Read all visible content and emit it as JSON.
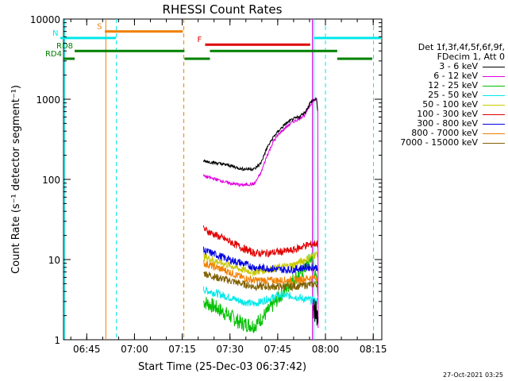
{
  "chart_data": {
    "type": "line",
    "title": "RHESSI Count Rates",
    "xlabel": "Start Time (25-Dec-03 06:37:42)",
    "ylabel": "Count Rate (s⁻¹ detector segment⁻¹)",
    "yscale": "log",
    "ylim": [
      1,
      10000
    ],
    "xlim_minutes_after_0637": [
      0,
      100
    ],
    "x_ticks": [
      {
        "label": "06:45",
        "min": 7.3
      },
      {
        "label": "07:00",
        "min": 22.3
      },
      {
        "label": "07:15",
        "min": 37.3
      },
      {
        "label": "07:30",
        "min": 52.3
      },
      {
        "label": "07:45",
        "min": 67.3
      },
      {
        "label": "08:00",
        "min": 82.3
      },
      {
        "label": "08:15",
        "min": 97.3
      }
    ],
    "y_ticks": [
      {
        "label": "1",
        "v": 1
      },
      {
        "label": "10",
        "v": 10
      },
      {
        "label": "100",
        "v": 100
      },
      {
        "label": "1000",
        "v": 1000
      },
      {
        "label": "10000",
        "v": 10000
      }
    ],
    "data_start_min": 44,
    "data_end_min": 80,
    "series": [
      {
        "name": "3 - 6 keV",
        "color": "#000000",
        "x": [
          44,
          48,
          52,
          56,
          60,
          62,
          64,
          66,
          68,
          70,
          72,
          74,
          76,
          77.5,
          78.5,
          79.5,
          80
        ],
        "y": [
          170,
          160,
          150,
          135,
          135,
          160,
          250,
          340,
          420,
          500,
          560,
          600,
          700,
          900,
          980,
          1000,
          650
        ],
        "tail_x": [
          78.5,
          80
        ],
        "tail_y": [
          2.2,
          2.5
        ]
      },
      {
        "name": "6 - 12 keV",
        "color": "#e000e0",
        "x": [
          44,
          48,
          52,
          56,
          60,
          62,
          64,
          66,
          68,
          70,
          72,
          74,
          76,
          77.5,
          78.5,
          79.5,
          80
        ],
        "y": [
          110,
          100,
          90,
          85,
          88,
          120,
          200,
          300,
          380,
          450,
          520,
          570,
          650,
          850,
          950,
          1000,
          600
        ],
        "drop_to": 1.4
      },
      {
        "name": "12 - 25 keV",
        "color": "#00c000",
        "x": [
          44,
          48,
          52,
          56,
          60,
          64,
          68,
          72,
          76,
          78,
          80
        ],
        "y": [
          3.0,
          2.5,
          2.0,
          1.6,
          1.5,
          2.2,
          3.5,
          5.5,
          8.0,
          11,
          4.0
        ]
      },
      {
        "name": "25 - 50 keV",
        "color": "#00e8e8",
        "x": [
          44,
          48,
          52,
          56,
          60,
          64,
          68,
          72,
          76,
          80
        ],
        "y": [
          4.2,
          3.8,
          3.4,
          3.0,
          2.8,
          3.2,
          3.6,
          3.5,
          3.2,
          3.0
        ]
      },
      {
        "name": "50 - 100 keV",
        "color": "#c8c800",
        "x": [
          44,
          48,
          52,
          56,
          60,
          64,
          68,
          72,
          76,
          80
        ],
        "y": [
          11,
          9.5,
          8.5,
          7.5,
          7.0,
          7.5,
          8.0,
          8.5,
          10,
          12
        ]
      },
      {
        "name": "100 - 300 keV",
        "color": "#e00000",
        "x": [
          44,
          48,
          52,
          56,
          60,
          64,
          68,
          72,
          76,
          80
        ],
        "y": [
          24,
          20,
          17,
          14,
          12,
          12,
          12.5,
          13,
          15,
          16
        ]
      },
      {
        "name": "300 - 800 keV",
        "color": "#0000e0",
        "x": [
          44,
          48,
          52,
          56,
          60,
          64,
          68,
          72,
          76,
          80
        ],
        "y": [
          13,
          11.5,
          10,
          9,
          8,
          7.8,
          7.5,
          7.5,
          8,
          8
        ]
      },
      {
        "name": "800 - 7000 keV",
        "color": "#f08000",
        "x": [
          44,
          48,
          52,
          56,
          60,
          64,
          68,
          72,
          76,
          80
        ],
        "y": [
          9,
          8,
          7,
          6,
          5.5,
          5.5,
          5.5,
          5.5,
          5.8,
          6
        ]
      },
      {
        "name": "7000 - 15000 keV",
        "color": "#806000",
        "x": [
          44,
          48,
          52,
          56,
          60,
          64,
          68,
          72,
          76,
          80
        ],
        "y": [
          6.8,
          6,
          5.5,
          5,
          4.6,
          4.6,
          4.6,
          4.6,
          4.8,
          5
        ]
      }
    ],
    "annotations": {
      "flags": [
        {
          "label": "S",
          "color": "#f08000",
          "start_min": 13,
          "end_min": 37.5,
          "level": 7000
        },
        {
          "label": "N",
          "color": "#00e8e8",
          "start_min": -1,
          "end_min": 16.5,
          "level": 5800
        },
        {
          "label": "N",
          "color": "#00e8e8",
          "start_min": 78.8,
          "end_min": 100,
          "level": 5800,
          "show_label": false
        },
        {
          "label": "F",
          "color": "#e00000",
          "start_min": 44.5,
          "end_min": 77.5,
          "level": 4800
        },
        {
          "label": "RD8",
          "color": "#008000",
          "start_min": 3.5,
          "end_min": 38,
          "level": 4000
        },
        {
          "label": "",
          "color": "#008000",
          "start_min": 46,
          "end_min": 86,
          "level": 4000
        },
        {
          "label": "RD4",
          "color": "#008000",
          "start_min": 0,
          "end_min": 3.5,
          "level": 3200
        },
        {
          "label": "",
          "color": "#008000",
          "start_min": 38,
          "end_min": 46,
          "level": 3200
        },
        {
          "label": "",
          "color": "#008000",
          "start_min": 86,
          "end_min": 97,
          "level": 3200
        }
      ],
      "vlines": [
        {
          "min": 0.4,
          "color": "#00e8e8",
          "style": "solid"
        },
        {
          "min": 13.3,
          "color": "#f08000",
          "style": "solid"
        },
        {
          "min": 16.6,
          "color": "#00e8e8",
          "style": "dashed"
        },
        {
          "min": 37.8,
          "color": "#f08000",
          "style": "dashed"
        },
        {
          "min": 78.6,
          "color": "#00e8e8",
          "style": "solid"
        },
        {
          "min": 82.3,
          "color": "#00e8e8",
          "style": "dashed"
        },
        {
          "min": 97.4,
          "color": "#00e8e8",
          "style": "dashed"
        },
        {
          "min": 78.2,
          "color": "#e000e0",
          "style": "solid"
        }
      ]
    }
  },
  "legend": {
    "header_line1": "Det 1f,3f,4f,5f,6f,9f,",
    "header_line2": "FDecim 1, Att 0"
  },
  "footer": {
    "date_stamp": "27-Oct-2021 03:25"
  }
}
